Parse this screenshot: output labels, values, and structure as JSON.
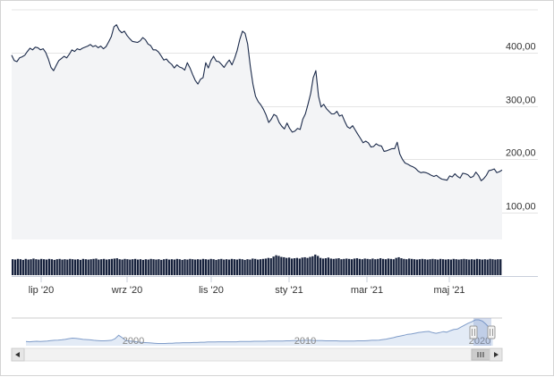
{
  "chart_data": {
    "type": "area",
    "title": "",
    "xlabel": "",
    "ylabel": "",
    "ylim": [
      50,
      480
    ],
    "y_ticks": [
      100,
      200,
      300,
      400
    ],
    "y_tick_labels": [
      "100,00",
      "200,00",
      "300,00",
      "400,00"
    ],
    "x_ticks": [
      "lip '20",
      "wrz '20",
      "lis '20",
      "sty '21",
      "mar '21",
      "maj '21"
    ],
    "grid": true,
    "legend": "none",
    "series": [
      {
        "values": [
          395,
          385,
          383,
          390,
          392,
          395,
          402,
          408,
          405,
          410,
          409,
          405,
          407,
          400,
          388,
          372,
          366,
          376,
          385,
          389,
          393,
          390,
          397,
          405,
          402,
          407,
          405,
          408,
          410,
          412,
          415,
          411,
          413,
          409,
          412,
          407,
          411,
          420,
          430,
          448,
          452,
          442,
          437,
          440,
          432,
          426,
          421,
          420,
          419,
          422,
          428,
          424,
          416,
          413,
          405,
          405,
          401,
          394,
          386,
          388,
          382,
          378,
          371,
          377,
          373,
          371,
          367,
          381,
          371,
          359,
          348,
          341,
          350,
          353,
          381,
          371,
          385,
          393,
          384,
          383,
          378,
          372,
          380,
          386,
          377,
          389,
          404,
          425,
          440,
          436,
          416,
          374,
          341,
          318,
          308,
          302,
          294,
          283,
          269,
          275,
          284,
          281,
          269,
          262,
          257,
          268,
          258,
          251,
          253,
          258,
          256,
          275,
          285,
          303,
          323,
          353,
          366,
          318,
          298,
          303,
          295,
          290,
          285,
          285,
          290,
          281,
          283,
          271,
          261,
          258,
          263,
          255,
          247,
          239,
          231,
          234,
          231,
          223,
          224,
          229,
          226,
          225,
          215,
          216,
          218,
          220,
          220,
          232,
          210,
          200,
          193,
          191,
          188,
          186,
          183,
          178,
          175,
          176,
          175,
          173,
          170,
          168,
          170,
          166,
          163,
          162,
          161,
          169,
          167,
          173,
          168,
          165,
          174,
          173,
          171,
          166,
          168,
          176,
          170,
          160,
          164,
          170,
          179,
          180,
          182,
          175,
          177,
          180
        ]
      }
    ],
    "volume": [
      48,
      47,
      49,
      48,
      46,
      49,
      47,
      48,
      50,
      48,
      47,
      49,
      48,
      47,
      49,
      48,
      46,
      48,
      49,
      47,
      48,
      47,
      49,
      48,
      47,
      48,
      46,
      49,
      48,
      47,
      48,
      49,
      50,
      47,
      48,
      49,
      47,
      48,
      49,
      50,
      51,
      48,
      47,
      49,
      48,
      47,
      48,
      49,
      47,
      48,
      46,
      48,
      47,
      49,
      48,
      47,
      48,
      46,
      48,
      49,
      47,
      48,
      47,
      49,
      48,
      46,
      48,
      47,
      49,
      48,
      47,
      48,
      47,
      49,
      48,
      47,
      49,
      48,
      46,
      48,
      49,
      47,
      48,
      47,
      49,
      48,
      47,
      49,
      48,
      46,
      48,
      47,
      50,
      49,
      47,
      48,
      49,
      50,
      52,
      51,
      56,
      60,
      58,
      55,
      54,
      52,
      53,
      50,
      51,
      52,
      50,
      53,
      54,
      52,
      55,
      57,
      62,
      58,
      52,
      50,
      51,
      53,
      50,
      49,
      50,
      51,
      48,
      49,
      50,
      49,
      48,
      50,
      51,
      49,
      48,
      50,
      49,
      48,
      50,
      48,
      49,
      51,
      49,
      48,
      50,
      49,
      48,
      52,
      54,
      51,
      49,
      48,
      50,
      49,
      48,
      47,
      48,
      49,
      48,
      47,
      48,
      49,
      48,
      47,
      49,
      48,
      47,
      48,
      47,
      49,
      48,
      47,
      48,
      49,
      48,
      47,
      48,
      47,
      49,
      48,
      47,
      48,
      47,
      49,
      48,
      47,
      48,
      48
    ],
    "navigator": {
      "years": [
        "2000",
        "2010",
        "2020"
      ],
      "values": [
        10,
        9,
        10,
        11,
        10,
        11,
        12,
        14,
        15,
        16,
        17,
        19,
        22,
        24,
        23,
        21,
        19,
        18,
        17,
        15,
        14,
        13,
        13,
        14,
        15,
        22,
        36,
        26,
        14,
        12,
        11,
        9,
        7,
        6,
        5,
        4,
        3,
        2,
        2,
        2,
        3,
        3,
        4,
        4,
        5,
        5,
        5,
        6,
        6,
        7,
        7,
        8,
        8,
        8,
        9,
        9,
        9,
        9,
        9,
        9,
        10,
        10,
        10,
        10,
        11,
        11,
        11,
        11,
        12,
        12,
        12,
        12,
        12,
        13,
        13,
        14,
        14,
        14,
        15,
        15,
        15,
        14,
        14,
        14,
        13,
        13,
        13,
        13,
        12,
        12,
        12,
        12,
        12,
        13,
        13,
        13,
        14,
        15,
        15,
        16,
        18,
        20,
        23,
        26,
        30,
        33,
        36,
        40,
        41,
        44,
        47,
        49,
        51,
        52,
        47,
        44,
        47,
        51,
        49,
        55,
        60,
        62,
        70,
        78,
        86,
        92,
        100,
        100,
        95,
        82,
        66,
        55
      ]
    }
  },
  "scrollbar": {
    "left_icon": "arrow-left-icon",
    "right_icon": "arrow-right-icon",
    "grip_icon": "grip-lines-icon"
  },
  "colors": {
    "line": "#1b2a4a",
    "area": "#f3f4f6",
    "grid": "#e4e4e4",
    "volume": "#17223d",
    "navigator_line": "#7f9cc9",
    "navigator_area": "#e3ebf6"
  }
}
